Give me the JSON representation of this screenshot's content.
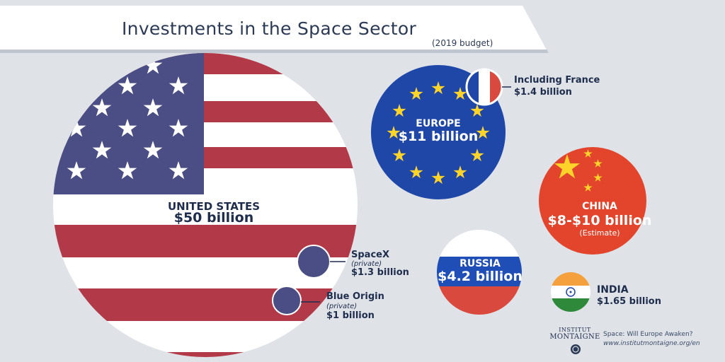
{
  "header": {
    "title": "Investments in the Space Sector",
    "subtitle": "(2019 budget)"
  },
  "countries": {
    "usa": {
      "name": "UNITED STATES",
      "value": "$50 billion"
    },
    "europe": {
      "name": "EUROPE",
      "value": "$11 billion"
    },
    "france": {
      "label": "Including France",
      "value": "$1.4 billion"
    },
    "china": {
      "name": "CHINA",
      "value": "$8-$10 billion",
      "note": "(Estimate)"
    },
    "russia": {
      "name": "RUSSIA",
      "value": "$4.2 billion"
    },
    "india": {
      "name": "INDIA",
      "value": "$1.65 billion"
    }
  },
  "private": {
    "spacex": {
      "name": "SpaceX",
      "note": "(private)",
      "value": "$1.3 billion"
    },
    "blue_origin": {
      "name": "Blue Origin",
      "note": "(private)",
      "value": "$1 billion"
    }
  },
  "footer": {
    "logo_top": "INSTITUT",
    "logo_bottom": "MONTAIGNE",
    "report_title": "Space: Will Europe Awaken?",
    "url": "www.institutmontaigne.org/en"
  },
  "colors": {
    "background": "#dfe3e8",
    "usa_red": "#b23a48",
    "usa_blue": "#4a4e84",
    "europe_blue": "#1f47a8",
    "star_gold": "#ffd42a",
    "china_red": "#e2452c",
    "russia_blue": "#1f4fb6",
    "russia_red": "#d9493d",
    "india_saffron": "#f4a03c",
    "india_green": "#2e8a3a",
    "text_navy": "#1f2d4d"
  }
}
